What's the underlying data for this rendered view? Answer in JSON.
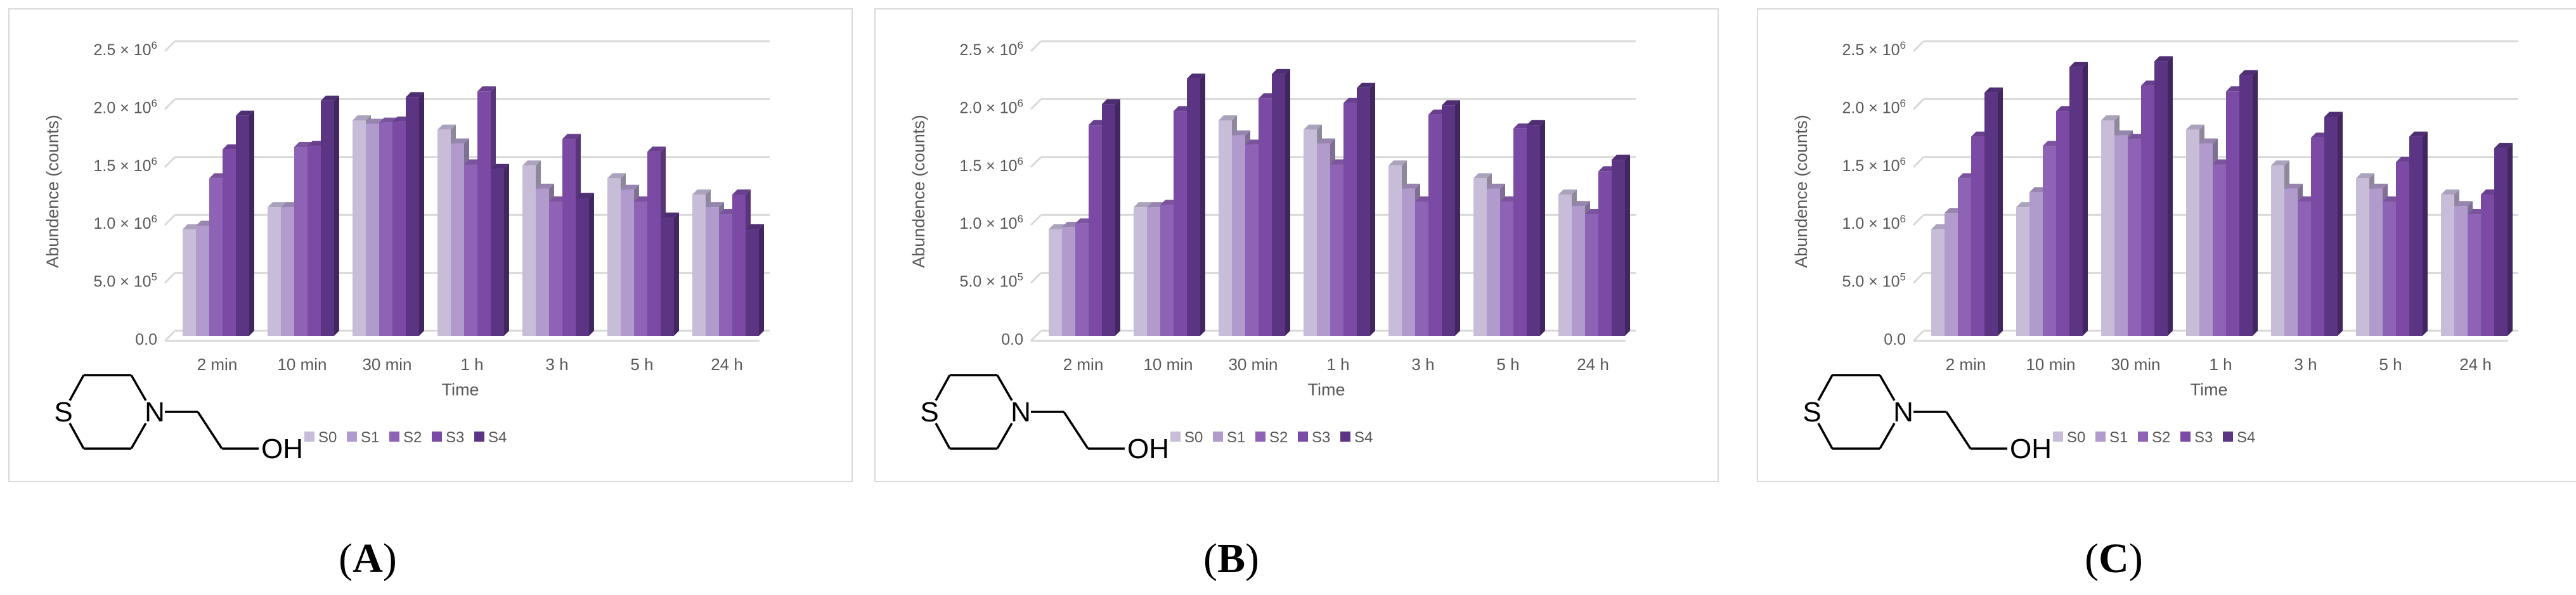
{
  "figure": {
    "panel_labels": [
      "A",
      "B",
      "C"
    ],
    "molecule": {
      "atom_s": "S",
      "atom_n": "N",
      "group_oh": "OH"
    }
  },
  "colors": {
    "series": [
      "#c7bdd9",
      "#b09bcc",
      "#8e62b5",
      "#7a4aa5",
      "#5b3584"
    ],
    "grid": "#d9d9d9",
    "frame": "#d9d9d9",
    "text": "#595959"
  },
  "chart_data": [
    {
      "type": "bar",
      "panel": "A",
      "xlabel": "Time",
      "ylabel": "Abundence (counts)",
      "ylim": [
        0,
        2500000
      ],
      "y_ticks": [
        {
          "value": 0,
          "mantissa": "0.0",
          "exponent": ""
        },
        {
          "value": 500000,
          "mantissa": "5.0 × 10",
          "exponent": "5"
        },
        {
          "value": 1000000,
          "mantissa": "1.0 × 10",
          "exponent": "6"
        },
        {
          "value": 1500000,
          "mantissa": "1.5 × 10",
          "exponent": "6"
        },
        {
          "value": 2000000,
          "mantissa": "2.0 × 10",
          "exponent": "6"
        },
        {
          "value": 2500000,
          "mantissa": "2.5 × 10",
          "exponent": "6"
        }
      ],
      "grid": true,
      "legend": "bottom",
      "categories": [
        "2 min",
        "10 min",
        "30 min",
        "1 h",
        "3 h",
        "5 h",
        "24 h"
      ],
      "series": [
        {
          "name": "S0",
          "values": [
            920000,
            1110000,
            1860000,
            1780000,
            1470000,
            1360000,
            1220000
          ]
        },
        {
          "name": "S1",
          "values": [
            950000,
            1110000,
            1830000,
            1660000,
            1270000,
            1260000,
            1110000
          ]
        },
        {
          "name": "S2",
          "values": [
            1360000,
            1630000,
            1840000,
            1480000,
            1160000,
            1160000,
            1050000
          ]
        },
        {
          "name": "S3",
          "values": [
            1610000,
            1640000,
            1850000,
            2110000,
            1700000,
            1590000,
            1220000
          ]
        },
        {
          "name": "S4",
          "values": [
            1900000,
            2030000,
            2060000,
            1440000,
            1190000,
            1020000,
            920000
          ]
        }
      ]
    },
    {
      "type": "bar",
      "panel": "B",
      "xlabel": "Time",
      "ylabel": "Abundence (counts)",
      "ylim": [
        0,
        2500000
      ],
      "y_ticks": [
        {
          "value": 0,
          "mantissa": "0.0",
          "exponent": ""
        },
        {
          "value": 500000,
          "mantissa": "5.0 × 10",
          "exponent": "5"
        },
        {
          "value": 1000000,
          "mantissa": "1.0 × 10",
          "exponent": "6"
        },
        {
          "value": 1500000,
          "mantissa": "1.5 × 10",
          "exponent": "6"
        },
        {
          "value": 2000000,
          "mantissa": "2.0 × 10",
          "exponent": "6"
        },
        {
          "value": 2500000,
          "mantissa": "2.5 × 10",
          "exponent": "6"
        }
      ],
      "grid": true,
      "legend": "bottom",
      "categories": [
        "2 min",
        "10 min",
        "30 min",
        "1 h",
        "3 h",
        "5 h",
        "24 h"
      ],
      "series": [
        {
          "name": "S0",
          "values": [
            920000,
            1110000,
            1860000,
            1780000,
            1470000,
            1360000,
            1220000
          ]
        },
        {
          "name": "S1",
          "values": [
            940000,
            1110000,
            1730000,
            1660000,
            1270000,
            1270000,
            1120000
          ]
        },
        {
          "name": "S2",
          "values": [
            970000,
            1130000,
            1650000,
            1480000,
            1160000,
            1160000,
            1050000
          ]
        },
        {
          "name": "S3",
          "values": [
            1820000,
            1940000,
            2050000,
            2010000,
            1910000,
            1790000,
            1420000
          ]
        },
        {
          "name": "S4",
          "values": [
            2000000,
            2220000,
            2260000,
            2140000,
            1990000,
            1820000,
            1520000
          ]
        }
      ]
    },
    {
      "type": "bar",
      "panel": "C",
      "xlabel": "Time",
      "ylabel": "Abundence (counts)",
      "ylim": [
        0,
        2500000
      ],
      "y_ticks": [
        {
          "value": 0,
          "mantissa": "0.0",
          "exponent": ""
        },
        {
          "value": 500000,
          "mantissa": "5.0 × 10",
          "exponent": "5"
        },
        {
          "value": 1000000,
          "mantissa": "1.0 × 10",
          "exponent": "6"
        },
        {
          "value": 1500000,
          "mantissa": "1.5 × 10",
          "exponent": "6"
        },
        {
          "value": 2000000,
          "mantissa": "2.0 × 10",
          "exponent": "6"
        },
        {
          "value": 2500000,
          "mantissa": "2.5 × 10",
          "exponent": "6"
        }
      ],
      "grid": true,
      "legend": "bottom",
      "categories": [
        "2 min",
        "10 min",
        "30 min",
        "1 h",
        "3 h",
        "5 h",
        "24 h"
      ],
      "series": [
        {
          "name": "S0",
          "values": [
            920000,
            1110000,
            1860000,
            1780000,
            1470000,
            1360000,
            1220000
          ]
        },
        {
          "name": "S1",
          "values": [
            1060000,
            1240000,
            1730000,
            1660000,
            1270000,
            1270000,
            1120000
          ]
        },
        {
          "name": "S2",
          "values": [
            1360000,
            1640000,
            1700000,
            1480000,
            1160000,
            1160000,
            1050000
          ]
        },
        {
          "name": "S3",
          "values": [
            1720000,
            1940000,
            2160000,
            2110000,
            1710000,
            1500000,
            1220000
          ]
        },
        {
          "name": "S4",
          "values": [
            2100000,
            2320000,
            2370000,
            2250000,
            1890000,
            1720000,
            1620000
          ]
        }
      ]
    }
  ]
}
